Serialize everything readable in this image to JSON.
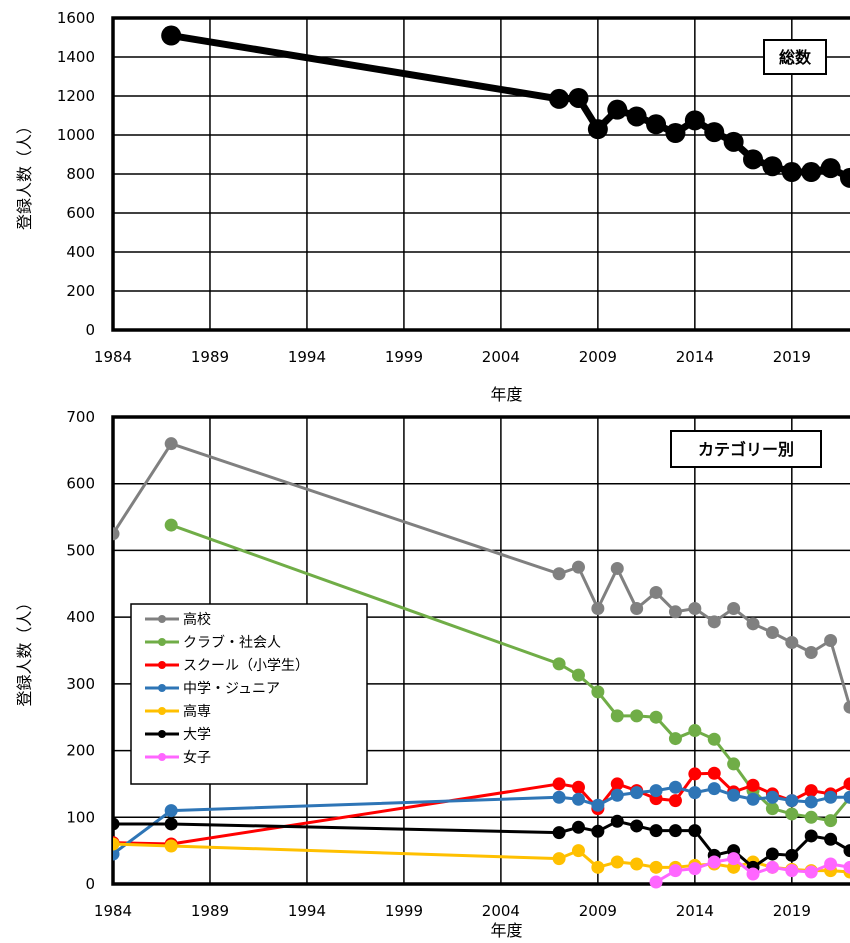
{
  "chart_data": [
    {
      "type": "line",
      "title": "総数",
      "xlabel": "年度",
      "ylabel": "登録人数（人）",
      "xlim": [
        1984,
        2022
      ],
      "ylim": [
        0,
        1600
      ],
      "x_ticks": [
        1984,
        1989,
        1994,
        1999,
        2004,
        2009,
        2014,
        2019
      ],
      "y_ticks": [
        0,
        200,
        400,
        600,
        800,
        1000,
        1200,
        1400,
        1600
      ],
      "grid": true,
      "series": [
        {
          "color": "#000000",
          "points": [
            {
              "x": 1987,
              "y": 1510
            },
            {
              "x": 2007,
              "y": 1185
            },
            {
              "x": 2008,
              "y": 1190
            },
            {
              "x": 2009,
              "y": 1030
            },
            {
              "x": 2010,
              "y": 1130
            },
            {
              "x": 2011,
              "y": 1095
            },
            {
              "x": 2012,
              "y": 1055
            },
            {
              "x": 2013,
              "y": 1010
            },
            {
              "x": 2014,
              "y": 1075
            },
            {
              "x": 2015,
              "y": 1015
            },
            {
              "x": 2016,
              "y": 965
            },
            {
              "x": 2017,
              "y": 875
            },
            {
              "x": 2018,
              "y": 840
            },
            {
              "x": 2019,
              "y": 810
            },
            {
              "x": 2020,
              "y": 810
            },
            {
              "x": 2021,
              "y": 830
            },
            {
              "x": 2022,
              "y": 780
            }
          ]
        }
      ]
    },
    {
      "type": "line",
      "title": "カテゴリー別",
      "xlabel": "年度",
      "ylabel": "登録人数（人）",
      "xlim": [
        1984,
        2022
      ],
      "ylim": [
        0,
        700
      ],
      "x_ticks": [
        1984,
        1989,
        1994,
        1999,
        2004,
        2009,
        2014,
        2019
      ],
      "y_ticks": [
        0,
        100,
        200,
        300,
        400,
        500,
        600,
        700
      ],
      "grid": true,
      "legend_position": "middle-left",
      "series": [
        {
          "name": "高校",
          "color": "#808080",
          "points": [
            {
              "x": 1984,
              "y": 525
            },
            {
              "x": 1987,
              "y": 660
            },
            {
              "x": 2007,
              "y": 465
            },
            {
              "x": 2008,
              "y": 475
            },
            {
              "x": 2009,
              "y": 413
            },
            {
              "x": 2010,
              "y": 473
            },
            {
              "x": 2011,
              "y": 413
            },
            {
              "x": 2012,
              "y": 437
            },
            {
              "x": 2013,
              "y": 408
            },
            {
              "x": 2014,
              "y": 413
            },
            {
              "x": 2015,
              "y": 393
            },
            {
              "x": 2016,
              "y": 413
            },
            {
              "x": 2017,
              "y": 390
            },
            {
              "x": 2018,
              "y": 377
            },
            {
              "x": 2019,
              "y": 362
            },
            {
              "x": 2020,
              "y": 347
            },
            {
              "x": 2021,
              "y": 365
            },
            {
              "x": 2022,
              "y": 265
            }
          ]
        },
        {
          "name": "クラブ・社会人",
          "color": "#70ad47",
          "points": [
            {
              "x": 1987,
              "y": 538
            },
            {
              "x": 2007,
              "y": 330
            },
            {
              "x": 2008,
              "y": 313
            },
            {
              "x": 2009,
              "y": 288
            },
            {
              "x": 2010,
              "y": 252
            },
            {
              "x": 2011,
              "y": 252
            },
            {
              "x": 2012,
              "y": 250
            },
            {
              "x": 2013,
              "y": 218
            },
            {
              "x": 2014,
              "y": 230
            },
            {
              "x": 2015,
              "y": 217
            },
            {
              "x": 2016,
              "y": 180
            },
            {
              "x": 2017,
              "y": 140
            },
            {
              "x": 2018,
              "y": 113
            },
            {
              "x": 2019,
              "y": 105
            },
            {
              "x": 2020,
              "y": 100
            },
            {
              "x": 2021,
              "y": 95
            },
            {
              "x": 2022,
              "y": 130
            }
          ]
        },
        {
          "name": "スクール（小学生）",
          "color": "#ff0000",
          "points": [
            {
              "x": 1984,
              "y": 62
            },
            {
              "x": 1987,
              "y": 60
            },
            {
              "x": 2007,
              "y": 150
            },
            {
              "x": 2008,
              "y": 145
            },
            {
              "x": 2009,
              "y": 113
            },
            {
              "x": 2010,
              "y": 150
            },
            {
              "x": 2011,
              "y": 140
            },
            {
              "x": 2012,
              "y": 128
            },
            {
              "x": 2013,
              "y": 125
            },
            {
              "x": 2014,
              "y": 165
            },
            {
              "x": 2015,
              "y": 166
            },
            {
              "x": 2016,
              "y": 138
            },
            {
              "x": 2017,
              "y": 148
            },
            {
              "x": 2018,
              "y": 135
            },
            {
              "x": 2019,
              "y": 125
            },
            {
              "x": 2020,
              "y": 140
            },
            {
              "x": 2021,
              "y": 135
            },
            {
              "x": 2022,
              "y": 150
            }
          ]
        },
        {
          "name": "中学・ジュニア",
          "color": "#2e75b6",
          "points": [
            {
              "x": 1984,
              "y": 45
            },
            {
              "x": 1987,
              "y": 110
            },
            {
              "x": 2007,
              "y": 130
            },
            {
              "x": 2008,
              "y": 127
            },
            {
              "x": 2009,
              "y": 118
            },
            {
              "x": 2010,
              "y": 133
            },
            {
              "x": 2011,
              "y": 137
            },
            {
              "x": 2012,
              "y": 140
            },
            {
              "x": 2013,
              "y": 145
            },
            {
              "x": 2014,
              "y": 137
            },
            {
              "x": 2015,
              "y": 143
            },
            {
              "x": 2016,
              "y": 133
            },
            {
              "x": 2017,
              "y": 127
            },
            {
              "x": 2018,
              "y": 130
            },
            {
              "x": 2019,
              "y": 125
            },
            {
              "x": 2020,
              "y": 123
            },
            {
              "x": 2021,
              "y": 130
            },
            {
              "x": 2022,
              "y": 130
            }
          ]
        },
        {
          "name": "高専",
          "color": "#ffc000",
          "points": [
            {
              "x": 1984,
              "y": 60
            },
            {
              "x": 1987,
              "y": 57
            },
            {
              "x": 2007,
              "y": 38
            },
            {
              "x": 2008,
              "y": 50
            },
            {
              "x": 2009,
              "y": 25
            },
            {
              "x": 2010,
              "y": 33
            },
            {
              "x": 2011,
              "y": 30
            },
            {
              "x": 2012,
              "y": 25
            },
            {
              "x": 2013,
              "y": 25
            },
            {
              "x": 2014,
              "y": 28
            },
            {
              "x": 2015,
              "y": 30
            },
            {
              "x": 2016,
              "y": 25
            },
            {
              "x": 2017,
              "y": 33
            },
            {
              "x": 2018,
              "y": 25
            },
            {
              "x": 2019,
              "y": 22
            },
            {
              "x": 2020,
              "y": 20
            },
            {
              "x": 2021,
              "y": 20
            },
            {
              "x": 2022,
              "y": 18
            }
          ]
        },
        {
          "name": "大学",
          "color": "#000000",
          "points": [
            {
              "x": 1984,
              "y": 90
            },
            {
              "x": 1987,
              "y": 90
            },
            {
              "x": 2007,
              "y": 77
            },
            {
              "x": 2008,
              "y": 85
            },
            {
              "x": 2009,
              "y": 79
            },
            {
              "x": 2010,
              "y": 94
            },
            {
              "x": 2011,
              "y": 87
            },
            {
              "x": 2012,
              "y": 80
            },
            {
              "x": 2013,
              "y": 80
            },
            {
              "x": 2014,
              "y": 80
            },
            {
              "x": 2015,
              "y": 43
            },
            {
              "x": 2016,
              "y": 50
            },
            {
              "x": 2017,
              "y": 25
            },
            {
              "x": 2018,
              "y": 45
            },
            {
              "x": 2019,
              "y": 43
            },
            {
              "x": 2020,
              "y": 72
            },
            {
              "x": 2021,
              "y": 67
            },
            {
              "x": 2022,
              "y": 50
            }
          ]
        },
        {
          "name": "女子",
          "color": "#ff66ff",
          "points": [
            {
              "x": 2012,
              "y": 3
            },
            {
              "x": 2013,
              "y": 20
            },
            {
              "x": 2014,
              "y": 23
            },
            {
              "x": 2015,
              "y": 33
            },
            {
              "x": 2016,
              "y": 38
            },
            {
              "x": 2017,
              "y": 15
            },
            {
              "x": 2018,
              "y": 25
            },
            {
              "x": 2019,
              "y": 20
            },
            {
              "x": 2020,
              "y": 18
            },
            {
              "x": 2021,
              "y": 30
            },
            {
              "x": 2022,
              "y": 25
            }
          ]
        }
      ]
    }
  ]
}
